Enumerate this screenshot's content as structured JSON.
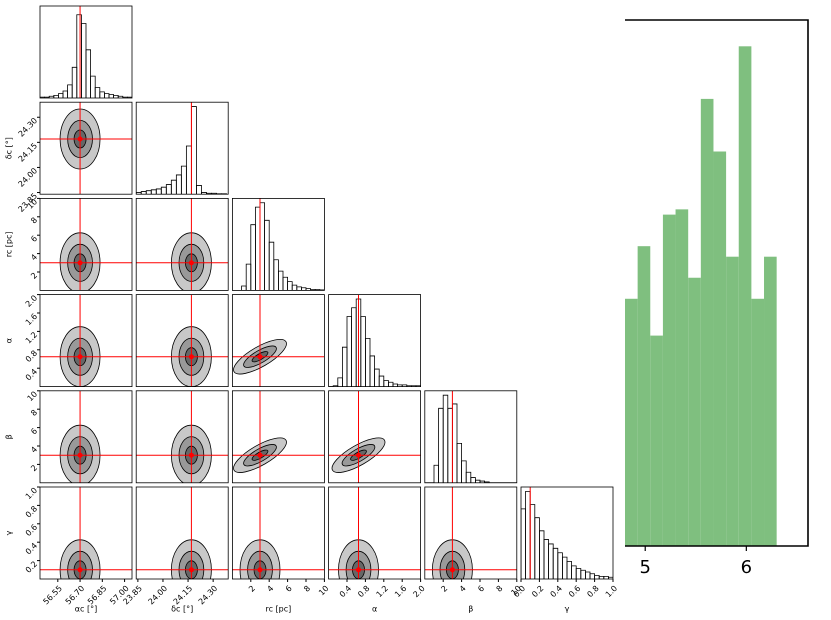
{
  "chart_data": [
    {
      "type": "corner",
      "params": [
        {
          "label": "αc [°]",
          "lim": [
            56.43,
            57.05
          ],
          "truth": 56.7,
          "xticks": [
            56.55,
            {
              "value": 56.7,
              "label": "56.70"
            },
            56.85,
            {
              "value": 57,
              "label": "57.00"
            }
          ],
          "bins": [
            56.43,
            56.461,
            56.492,
            56.523,
            56.554,
            56.585,
            56.616,
            56.647,
            56.678,
            56.709,
            56.74,
            56.771,
            56.802,
            56.833,
            56.864,
            56.895,
            56.926,
            56.957,
            56.988,
            57.019,
            57.05
          ],
          "counts": [
            0.01,
            0.01,
            0.02,
            0.03,
            0.05,
            0.08,
            0.15,
            0.35,
            0.95,
            0.85,
            0.55,
            0.25,
            0.12,
            0.07,
            0.05,
            0.04,
            0.03,
            0.02,
            0.01,
            0.01
          ]
        },
        {
          "label": "δc [°]",
          "lim": [
            23.84,
            24.39
          ],
          "truth": 24.17,
          "xticks": [
            23.85,
            {
              "value": 24,
              "label": "24.00"
            },
            24.15,
            {
              "value": 24.3,
              "label": "24.30"
            }
          ],
          "yticks": [
            23.85,
            {
              "value": 24,
              "label": "24.00"
            },
            24.15,
            {
              "value": 24.3,
              "label": "24.30"
            }
          ],
          "bins": [
            23.84,
            23.87,
            23.9,
            23.93,
            23.96,
            23.99,
            24.02,
            24.05,
            24.08,
            24.11,
            24.14,
            24.17,
            24.2,
            24.23,
            24.26,
            24.29,
            24.32,
            24.35,
            24.38
          ],
          "counts": [
            0.02,
            0.03,
            0.04,
            0.05,
            0.06,
            0.08,
            0.11,
            0.16,
            0.22,
            0.32,
            0.55,
            1.0,
            0.1,
            0.02,
            0.01,
            0.01,
            0.005,
            0.005
          ]
        },
        {
          "label": "rc [pc]",
          "lim": [
            0,
            10
          ],
          "truth": 3,
          "xticks": [
            2,
            4,
            6,
            8,
            10
          ],
          "yticks": [
            2,
            4,
            6,
            8,
            10
          ],
          "bins": [
            0,
            0.5,
            1,
            1.5,
            2,
            2.5,
            3,
            3.5,
            4,
            4.5,
            5,
            5.5,
            6,
            6.5,
            7,
            7.5,
            8,
            8.5,
            9,
            9.5,
            10
          ],
          "counts": [
            0,
            0,
            0.05,
            0.3,
            0.75,
            0.95,
            1.0,
            0.8,
            0.55,
            0.35,
            0.22,
            0.15,
            0.1,
            0.06,
            0.04,
            0.03,
            0.02,
            0.01,
            0.01,
            0.005
          ]
        },
        {
          "label": "α",
          "lim": [
            0,
            2
          ],
          "truth": 0.65,
          "xticks": [
            0.4,
            0.8,
            1.2,
            1.6,
            {
              "value": 2,
              "label": "2.0"
            }
          ],
          "yticks": [
            0.4,
            0.8,
            1.2,
            1.6,
            {
              "value": 2,
              "label": "2.0"
            }
          ],
          "bins": [
            0,
            0.1,
            0.2,
            0.3,
            0.4,
            0.5,
            0.6,
            0.7,
            0.8,
            0.9,
            1,
            1.1,
            1.2,
            1.3,
            1.4,
            1.5,
            1.6,
            1.7,
            1.8,
            1.9,
            2
          ],
          "counts": [
            0,
            0.01,
            0.1,
            0.45,
            0.8,
            0.9,
            1.0,
            0.8,
            0.55,
            0.35,
            0.2,
            0.12,
            0.07,
            0.05,
            0.03,
            0.02,
            0.02,
            0.01,
            0.01,
            0.01
          ]
        },
        {
          "label": "β",
          "lim": [
            0,
            10
          ],
          "truth": 3,
          "xticks": [
            2,
            4,
            6,
            8,
            10
          ],
          "yticks": [
            2,
            4,
            6,
            8,
            10
          ],
          "bins": [
            0,
            0.5,
            1,
            1.5,
            2,
            2.5,
            3,
            3.5,
            4,
            4.5,
            5,
            5.5,
            6,
            6.5,
            7,
            7.5,
            8,
            8.5,
            9,
            9.5,
            10
          ],
          "counts": [
            0,
            0,
            0.2,
            0.85,
            1.0,
            0.85,
            0.9,
            0.45,
            0.25,
            0.12,
            0.06,
            0.03,
            0.02,
            0.01,
            0,
            0,
            0,
            0,
            0,
            0
          ]
        },
        {
          "label": "γ",
          "lim": [
            0,
            1
          ],
          "truth": 0.1,
          "xticks": [
            {
              "value": 0,
              "label": "0.0"
            },
            0.2,
            0.4,
            0.6,
            0.8,
            {
              "value": 1,
              "label": "1.0"
            }
          ],
          "yticks": [
            0.2,
            0.4,
            0.6,
            0.8,
            {
              "value": 1,
              "label": "1.0"
            }
          ],
          "bins": [
            0,
            0.05,
            0.1,
            0.15,
            0.2,
            0.25,
            0.3,
            0.35,
            0.4,
            0.45,
            0.5,
            0.55,
            0.6,
            0.65,
            0.7,
            0.75,
            0.8,
            0.85,
            0.9,
            0.95,
            1
          ],
          "counts": [
            0.8,
            1.0,
            0.85,
            0.7,
            0.55,
            0.45,
            0.4,
            0.35,
            0.3,
            0.25,
            0.2,
            0.15,
            0.12,
            0.1,
            0.08,
            0.06,
            0.04,
            0.03,
            0.03,
            0.02
          ]
        }
      ],
      "diag_ylim": [
        0,
        1.05
      ],
      "truth_color": "#ff0000",
      "contour_colors": [
        "#c8c8c8",
        "#999999",
        "#666666"
      ]
    },
    {
      "type": "histogram",
      "color": "#7fbf7f",
      "bins": [
        4.8,
        4.925,
        5.05,
        5.175,
        5.3,
        5.425,
        5.55,
        5.675,
        5.8,
        5.925,
        6.05,
        6.175,
        6.3
      ],
      "counts": [
        4.7,
        5.7,
        4.0,
        6.3,
        6.4,
        5.1,
        8.5,
        7.5,
        5.5,
        9.5,
        4.7,
        5.5
      ],
      "xlim": [
        4.8,
        6.61
      ],
      "ylim": [
        0,
        10
      ],
      "xticks": [
        5,
        6
      ]
    }
  ]
}
